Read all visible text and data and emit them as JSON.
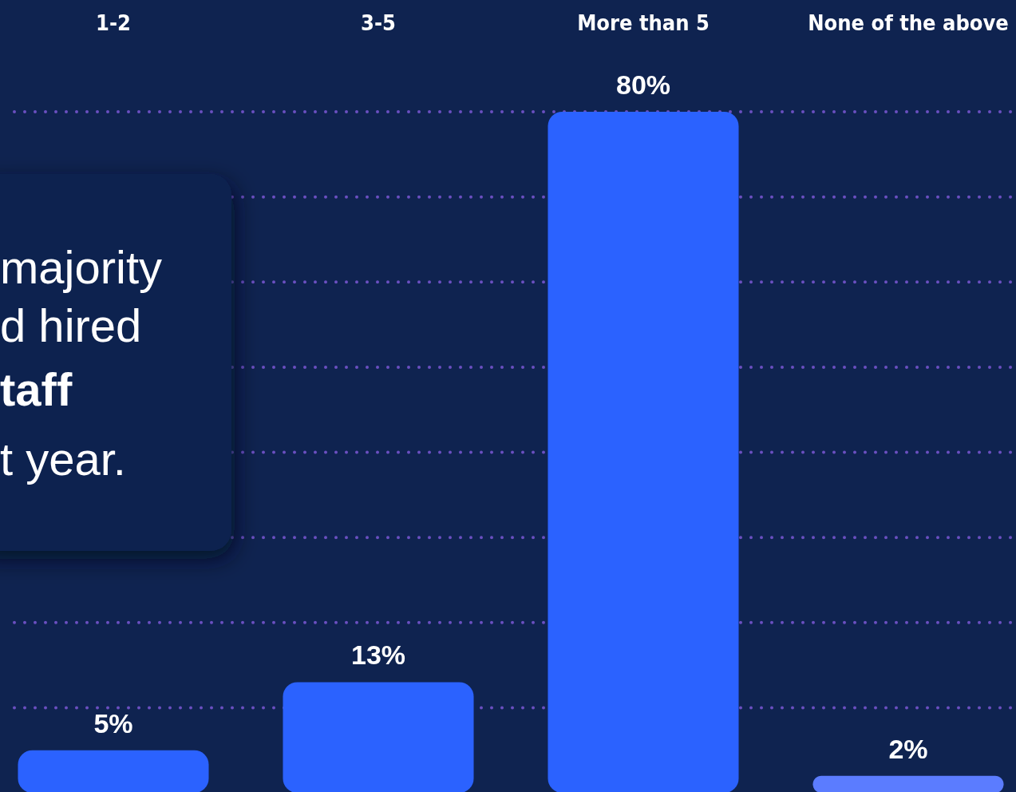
{
  "chart_data": {
    "type": "bar",
    "categories": [
      "1-2",
      "3-5",
      "More than 5",
      "None of the above"
    ],
    "values": [
      5,
      13,
      80,
      2
    ],
    "colors": [
      "#2b62ff",
      "#2b62ff",
      "#2b62ff",
      "#5b7cff"
    ],
    "value_labels": [
      "5%",
      "13%",
      "80%",
      "2%"
    ],
    "ylim": [
      0,
      80
    ],
    "yticks": [
      {
        "value": 10,
        "label": null
      },
      {
        "value": 20,
        "label": null
      },
      {
        "value": 30,
        "label": null
      },
      {
        "value": 40,
        "label": null
      },
      {
        "value": 50,
        "label": null
      },
      {
        "value": 60,
        "label": null
      },
      {
        "value": 70,
        "label": null
      },
      {
        "value": 80,
        "label": null
      }
    ],
    "grid": "y",
    "tick_labels": "x",
    "annotations": [
      "majority",
      "d hired",
      "taff",
      "t year."
    ]
  }
}
